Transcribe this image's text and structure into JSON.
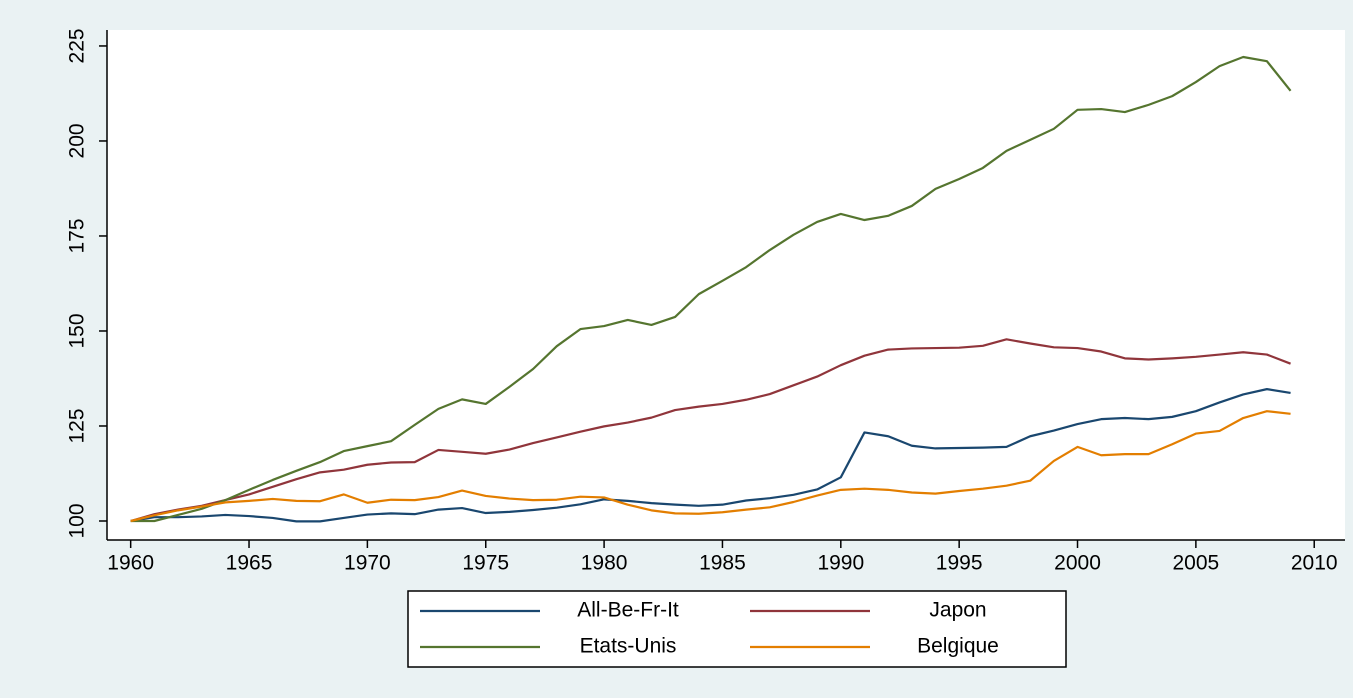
{
  "chart_data": {
    "type": "line",
    "x": [
      1960,
      1961,
      1962,
      1963,
      1964,
      1965,
      1966,
      1967,
      1968,
      1969,
      1970,
      1971,
      1972,
      1973,
      1974,
      1975,
      1976,
      1977,
      1978,
      1979,
      1980,
      1981,
      1982,
      1983,
      1984,
      1985,
      1986,
      1987,
      1988,
      1989,
      1990,
      1991,
      1992,
      1993,
      1994,
      1995,
      1996,
      1997,
      1998,
      1999,
      2000,
      2001,
      2002,
      2003,
      2004,
      2005,
      2006,
      2007,
      2008,
      2009
    ],
    "series": [
      {
        "name": "All-Be-Fr-It",
        "color": "#1a476f",
        "values": [
          100,
          101,
          101,
          101.2,
          101.6,
          101.3,
          100.8,
          99.9,
          99.9,
          100.8,
          101.7,
          102,
          101.8,
          103,
          103.4,
          102.1,
          102.4,
          102.9,
          103.5,
          104.4,
          105.7,
          105.3,
          104.7,
          104.3,
          104,
          104.3,
          105.4,
          106,
          106.9,
          108.3,
          111.5,
          123.3,
          122.3,
          119.8,
          119.1,
          119.2,
          119.3,
          119.5,
          122.3,
          123.8,
          125.5,
          126.8,
          127.1,
          126.8,
          127.4,
          128.9,
          131.2,
          133.3,
          134.7,
          133.7
        ]
      },
      {
        "name": "Japon",
        "color": "#90353b",
        "values": [
          100,
          101.8,
          103,
          104,
          105.5,
          107,
          109,
          111,
          112.8,
          113.5,
          114.8,
          115.4,
          115.5,
          118.7,
          118.2,
          117.7,
          118.8,
          120.5,
          122,
          123.5,
          124.9,
          125.9,
          127.2,
          129.2,
          130.1,
          130.8,
          131.9,
          133.4,
          135.7,
          138,
          141,
          143.5,
          145.1,
          145.4,
          145.5,
          145.6,
          146.1,
          147.8,
          146.7,
          145.7,
          145.5,
          144.6,
          142.8,
          142.5,
          142.8,
          143.2,
          143.8,
          144.4,
          143.8,
          141.4
        ]
      },
      {
        "name": "Etats-Unis",
        "color": "#55752f",
        "values": [
          100,
          100,
          101.6,
          103.2,
          105.5,
          108.2,
          110.8,
          113.2,
          115.5,
          118.4,
          119.7,
          121,
          125.3,
          129.5,
          132,
          130.8,
          135.3,
          140,
          146,
          150.5,
          151.3,
          152.9,
          151.6,
          153.7,
          159.7,
          163.2,
          166.8,
          171.3,
          175.3,
          178.7,
          180.8,
          179.2,
          180.3,
          182.9,
          187.4,
          190,
          192.9,
          197.4,
          200.3,
          203.2,
          208.2,
          208.4,
          207.6,
          209.5,
          211.8,
          215.5,
          219.7,
          222.1,
          221,
          213.2
        ]
      },
      {
        "name": "Belgique",
        "color": "#e37e00",
        "values": [
          100,
          101.5,
          102.8,
          103.8,
          104.9,
          105.3,
          105.8,
          105.3,
          105.2,
          107,
          104.8,
          105.6,
          105.5,
          106.3,
          108,
          106.6,
          105.9,
          105.5,
          105.6,
          106.4,
          106.2,
          104.3,
          102.8,
          102,
          101.9,
          102.3,
          103,
          103.6,
          105,
          106.7,
          108.2,
          108.5,
          108.2,
          107.5,
          107.2,
          107.9,
          108.5,
          109.3,
          110.6,
          115.8,
          119.5,
          117.3,
          117.6,
          117.6,
          120.2,
          123,
          123.7,
          127.1,
          128.9,
          128.2
        ]
      }
    ],
    "xlim": [
      1959,
      2011.3
    ],
    "xticks": [
      1960,
      1965,
      1970,
      1975,
      1980,
      1985,
      1990,
      1995,
      2000,
      2005,
      2010
    ],
    "ylim": [
      95,
      229.2
    ],
    "yticks": [
      100,
      125,
      150,
      175,
      200,
      225
    ],
    "legend": "bottom"
  }
}
